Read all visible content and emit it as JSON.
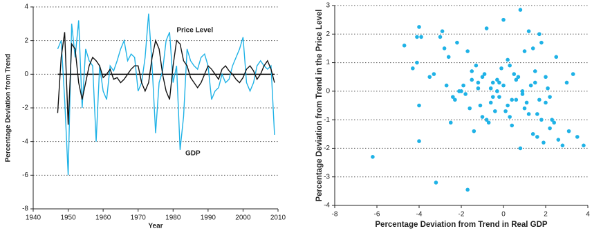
{
  "chart_data": [
    {
      "type": "line",
      "x_label": "Year",
      "y_label": "Percentage Deviation from Trend",
      "x": [
        1947,
        1948,
        1949,
        1950,
        1951,
        1952,
        1953,
        1954,
        1955,
        1956,
        1957,
        1958,
        1959,
        1960,
        1961,
        1962,
        1963,
        1964,
        1965,
        1966,
        1967,
        1968,
        1969,
        1970,
        1971,
        1972,
        1973,
        1974,
        1975,
        1976,
        1977,
        1978,
        1979,
        1980,
        1981,
        1982,
        1983,
        1984,
        1985,
        1986,
        1987,
        1988,
        1989,
        1990,
        1991,
        1992,
        1993,
        1994,
        1995,
        1996,
        1997,
        1998,
        1999,
        2000,
        2001,
        2002,
        2003,
        2004,
        2005,
        2006,
        2007,
        2008,
        2009
      ],
      "series": [
        {
          "name": "GDP",
          "color": "#1fb2e6",
          "values": [
            1.5,
            2.0,
            -1.5,
            -6.0,
            3.0,
            1.0,
            3.2,
            -2.0,
            1.5,
            0.8,
            0.5,
            -4.0,
            0.5,
            -1.0,
            -1.5,
            0.5,
            0.2,
            0.8,
            1.5,
            2.0,
            0.8,
            1.2,
            1.0,
            -1.0,
            -0.5,
            1.0,
            3.6,
            0.5,
            -3.5,
            -0.5,
            0.2,
            2.0,
            2.5,
            -0.5,
            0.5,
            -4.5,
            -2.5,
            1.5,
            0.8,
            0.5,
            0.3,
            1.0,
            1.2,
            0.5,
            -1.5,
            -1.0,
            -0.8,
            0.0,
            -0.5,
            -0.3,
            0.5,
            1.0,
            1.5,
            2.2,
            -0.5,
            -1.0,
            -0.5,
            0.5,
            0.8,
            0.5,
            0.3,
            0.5,
            -3.6
          ]
        },
        {
          "name": "Price Level",
          "color": "#111111",
          "values": [
            -2.3,
            1.0,
            2.5,
            -3.0,
            1.8,
            1.5,
            -0.5,
            -1.5,
            -0.5,
            0.5,
            1.0,
            0.8,
            0.5,
            -0.2,
            0.0,
            0.3,
            -0.3,
            -0.2,
            -0.5,
            -0.3,
            0.0,
            0.3,
            0.5,
            0.5,
            -0.5,
            -1.0,
            -0.5,
            1.0,
            2.0,
            1.5,
            0.0,
            -1.0,
            -1.5,
            0.5,
            2.0,
            1.8,
            0.8,
            0.5,
            -0.2,
            -0.5,
            -0.8,
            -0.5,
            0.0,
            0.5,
            0.3,
            0.0,
            -0.3,
            0.3,
            0.5,
            0.2,
            0.0,
            -0.3,
            -0.5,
            -0.2,
            0.3,
            0.5,
            0.2,
            -0.3,
            0.0,
            0.5,
            0.8,
            0.3,
            -0.5
          ]
        }
      ],
      "xlim": [
        1940,
        2010
      ],
      "xticks": [
        1940,
        1950,
        1960,
        1970,
        1980,
        1990,
        2000,
        2010
      ],
      "ylim": [
        -8,
        4
      ],
      "yticks": [
        -8,
        -6,
        -4,
        -2,
        0,
        2,
        4
      ],
      "grid": true
    },
    {
      "type": "scatter",
      "x_label": "Percentage Deviation from Trend in Real GDP",
      "y_label": "Percentage Deviation from Trend in the Price Level",
      "color": "#1fb2e6",
      "x": [
        -6.2,
        -4.7,
        -4.3,
        -4.1,
        -4.0,
        -3.9,
        -4.0,
        -4.0,
        -3.3,
        -3.0,
        -2.9,
        -2.8,
        -2.6,
        -2.2,
        -1.7,
        -1.5,
        -1.5,
        -1.3,
        -1.2,
        -1.0,
        -0.8,
        -0.6,
        -0.5,
        -0.3,
        -0.2,
        0.0,
        0.2,
        0.4,
        0.6,
        0.8,
        1.0,
        1.2,
        1.4,
        1.5,
        1.7,
        1.8,
        2.0,
        2.2,
        2.5,
        3.0,
        3.3,
        3.5,
        3.8,
        -2.4,
        -2.0,
        -1.8,
        -1.6,
        -1.4,
        -1.2,
        -1.0,
        -0.8,
        -0.6,
        -0.4,
        -0.2,
        0.0,
        0.2,
        0.4,
        0.6,
        0.8,
        1.0,
        1.2,
        1.4,
        1.6,
        1.8,
        2.0,
        2.2,
        2.4,
        2.6,
        2.8,
        3.1,
        -1.9,
        -1.1,
        -0.7,
        -0.3,
        0.1,
        0.5,
        0.9,
        1.3,
        1.7,
        2.1,
        -3.2,
        -1.7,
        -0.1,
        0.3,
        0.7,
        1.1,
        1.5,
        1.9,
        2.3,
        -2.7,
        -2.5,
        -2.3,
        -0.9,
        -0.5,
        0.3,
        0.9,
        1.6,
        -4.1,
        -3.5,
        -2.1
      ],
      "y": [
        -2.3,
        1.6,
        0.8,
        1.9,
        2.25,
        1.9,
        -0.5,
        -1.75,
        0.6,
        1.9,
        2.1,
        1.5,
        1.2,
        1.7,
        1.4,
        0.7,
        0.4,
        0.9,
        0.3,
        0.5,
        2.2,
        0.1,
        -0.2,
        0.0,
        0.3,
        2.5,
        1.1,
        -0.3,
        0.4,
        2.85,
        1.4,
        2.1,
        1.5,
        0.7,
        2.0,
        1.7,
        0.5,
        -0.2,
        1.2,
        0.3,
        0.6,
        -1.6,
        -1.9,
        -0.2,
        0.0,
        -0.1,
        -0.6,
        -1.4,
        0.1,
        -0.9,
        -1.0,
        -0.4,
        -0.7,
        -0.2,
        0.2,
        -0.5,
        -1.2,
        -0.3,
        -2.0,
        -0.6,
        -0.8,
        -1.5,
        -1.6,
        -1.0,
        -0.4,
        -1.3,
        -1.1,
        -1.7,
        -1.9,
        -1.4,
        0.2,
        -0.5,
        -1.1,
        0.4,
        -0.7,
        0.6,
        -0.1,
        0.2,
        -0.3,
        0.1,
        -3.2,
        -3.45,
        0.8,
        0.9,
        0.5,
        -0.4,
        0.3,
        -1.8,
        -1.0,
        0.2,
        -1.1,
        -0.3,
        0.6,
        0.3,
        -0.9,
        0.0,
        -0.8,
        1.0,
        0.5,
        0.0
      ],
      "xlim": [
        -8,
        4
      ],
      "xticks": [
        -8,
        -6,
        -4,
        -2,
        0,
        2,
        4
      ],
      "ylim": [
        -4,
        3
      ],
      "yticks": [
        -4,
        -3,
        -2,
        -1,
        0,
        1,
        2,
        3
      ],
      "grid": true
    }
  ]
}
